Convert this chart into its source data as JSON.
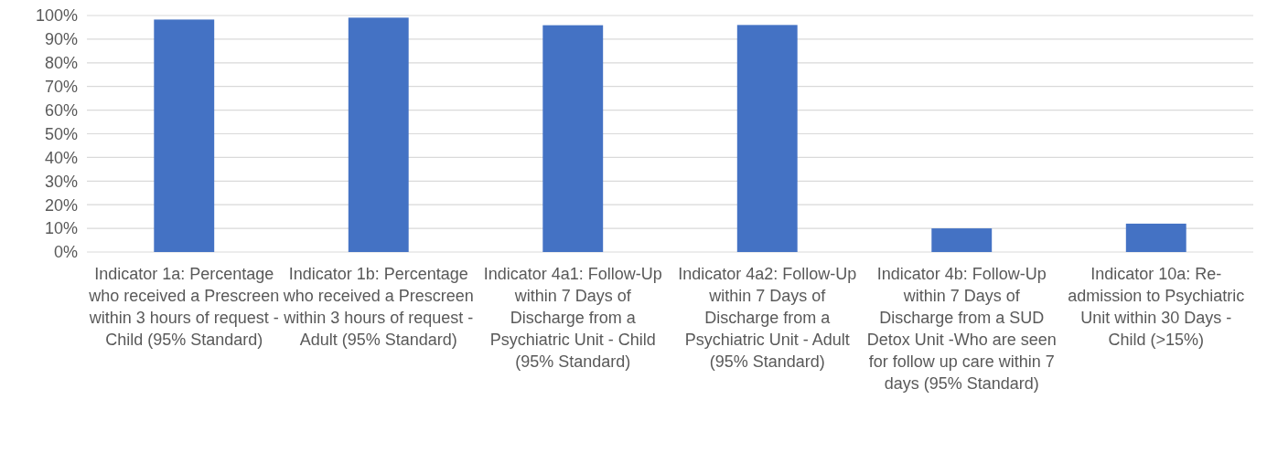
{
  "chart_data": {
    "type": "bar",
    "categories": [
      "Indicator 1a: Percentage who received a Prescreen within 3 hours of request - Child (95% Standard)",
      "Indicator 1b: Percentage who received a Prescreen within 3 hours of request - Adult (95% Standard)",
      "Indicator 4a1: Follow-Up within 7 Days of Discharge from a Psychiatric Unit - Child (95% Standard)",
      "Indicator 4a2: Follow-Up within 7 Days of Discharge from a Psychiatric Unit - Adult  (95% Standard)",
      "Indicator 4b: Follow-Up within 7 Days of Discharge from a SUD Detox Unit -Who are seen for follow up care within 7 days (95% Standard)",
      "Indicator 10a:  Re-admission to Psychiatric Unit within 30 Days - Child (>15%)"
    ],
    "values": [
      98.3,
      99.1,
      95.9,
      96,
      10,
      12
    ],
    "color": "#4472c4",
    "ylim": [
      0,
      100
    ],
    "yticks": [
      {
        "value": 0,
        "label": "0%"
      },
      {
        "value": 10,
        "label": "10%"
      },
      {
        "value": 20,
        "label": "20%"
      },
      {
        "value": 30,
        "label": "30%"
      },
      {
        "value": 40,
        "label": "40%"
      },
      {
        "value": 50,
        "label": "50%"
      },
      {
        "value": 60,
        "label": "60%"
      },
      {
        "value": 70,
        "label": "70%"
      },
      {
        "value": 80,
        "label": "80%"
      },
      {
        "value": 90,
        "label": "90%"
      },
      {
        "value": 100,
        "label": "100%"
      }
    ],
    "grid": "y"
  }
}
